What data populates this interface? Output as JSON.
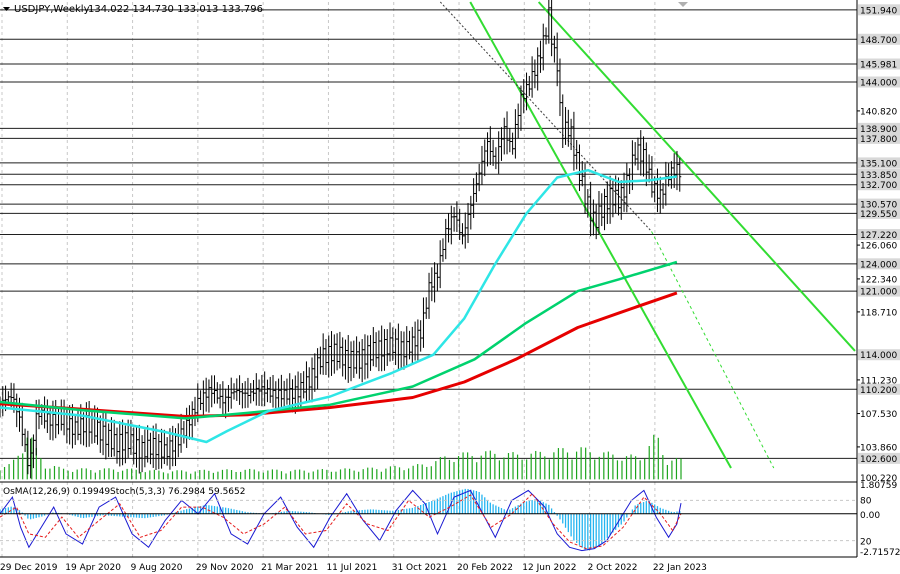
{
  "header": {
    "symbol": "USDJPY,Weekly",
    "ohlc": "134.022 134.730 133.013 133.796"
  },
  "indicator_header": {
    "osma": "OsMA(12,26,9) 0.19949",
    "stoch": "Stoch(5,3,3) 76.2984 59.5652"
  },
  "colors": {
    "background": "#ffffff",
    "grid": "#c8c8c8",
    "level": "#1f1f1f",
    "channel": "#32dc32",
    "ema_fast": "#2ee6e6",
    "ema_mid": "#00d26e",
    "ema_slow": "#e60000",
    "volume": "#1ea51e",
    "osma": "#24b4f0",
    "stoch_main": "#1a1ad2",
    "stoch_signal": "#e61e1e",
    "price_label_bg": "#d8d8d8"
  },
  "chart_data": {
    "type": "candlestick",
    "title": "USDJPY,Weekly",
    "ylim": [
      100.22,
      152.8
    ],
    "y_ticks": [
      "103.860",
      "107.530",
      "111.230",
      "114.000",
      "118.710",
      "122.340",
      "126.060",
      "129.550",
      "133.850",
      "140.820",
      "144.000",
      "148.700",
      "151.940"
    ],
    "x_ticks": [
      "29 Dec 2019",
      "19 Apr 2020",
      "9 Aug 2020",
      "29 Nov 2020",
      "21 Mar 2021",
      "11 Jul 2021",
      "31 Oct 2021",
      "20 Feb 2022",
      "12 Jun 2022",
      "2 Oct 2022",
      "22 Jan 2023"
    ],
    "levels": [
      "151.940",
      "148.700",
      "145.981",
      "144.000",
      "138.900",
      "137.800",
      "135.100",
      "133.850",
      "132.700",
      "130.570",
      "129.550",
      "127.220",
      "124.000",
      "121.000",
      "114.000",
      "110.200",
      "102.600"
    ],
    "bottom_label": "100.220",
    "price_path": [
      [
        0,
        108.8
      ],
      [
        6,
        109.5
      ],
      [
        10,
        106.5
      ],
      [
        14,
        101.5
      ],
      [
        18,
        107.8
      ],
      [
        24,
        106.8
      ],
      [
        30,
        107.0
      ],
      [
        36,
        105.8
      ],
      [
        42,
        106.5
      ],
      [
        48,
        105.6
      ],
      [
        56,
        104.2
      ],
      [
        62,
        104.6
      ],
      [
        68,
        103.4
      ],
      [
        74,
        104.0
      ],
      [
        80,
        103.3
      ],
      [
        86,
        104.6
      ],
      [
        90,
        106.0
      ],
      [
        96,
        108.8
      ],
      [
        102,
        110.2
      ],
      [
        108,
        108.9
      ],
      [
        114,
        110.1
      ],
      [
        120,
        109.6
      ],
      [
        126,
        110.3
      ],
      [
        132,
        109.7
      ],
      [
        138,
        109.6
      ],
      [
        144,
        109.9
      ],
      [
        150,
        111.2
      ],
      [
        156,
        113.8
      ],
      [
        162,
        114.3
      ],
      [
        168,
        113.5
      ],
      [
        174,
        113.4
      ],
      [
        180,
        114.4
      ],
      [
        186,
        114.8
      ],
      [
        190,
        115.1
      ],
      [
        196,
        114.5
      ],
      [
        200,
        115.3
      ],
      [
        204,
        116.5
      ],
      [
        208,
        121.5
      ],
      [
        212,
        123.0
      ],
      [
        216,
        127.5
      ],
      [
        220,
        129.5
      ],
      [
        224,
        126.8
      ],
      [
        228,
        130.4
      ],
      [
        232,
        133.8
      ],
      [
        236,
        137.5
      ],
      [
        240,
        135.0
      ],
      [
        244,
        139.0
      ],
      [
        248,
        136.5
      ],
      [
        252,
        142.0
      ],
      [
        256,
        143.5
      ],
      [
        260,
        145.8
      ],
      [
        264,
        149.0
      ],
      [
        266,
        151.5
      ],
      [
        268,
        147.5
      ],
      [
        270,
        146.0
      ],
      [
        272,
        138.5
      ],
      [
        276,
        139.0
      ],
      [
        280,
        134.8
      ],
      [
        284,
        131.0
      ],
      [
        288,
        128.5
      ],
      [
        292,
        130.2
      ],
      [
        296,
        131.5
      ],
      [
        300,
        131.0
      ],
      [
        304,
        133.0
      ],
      [
        308,
        136.5
      ],
      [
        312,
        135.8
      ],
      [
        316,
        132.5
      ],
      [
        320,
        131.5
      ],
      [
        324,
        133.8
      ],
      [
        328,
        134.5
      ],
      [
        330,
        133.8
      ]
    ],
    "ema_fast": [
      [
        0,
        108.2
      ],
      [
        40,
        107.3
      ],
      [
        80,
        105.5
      ],
      [
        100,
        104.4
      ],
      [
        110,
        105.6
      ],
      [
        130,
        107.8
      ],
      [
        160,
        109.4
      ],
      [
        190,
        112.0
      ],
      [
        210,
        114.0
      ],
      [
        225,
        118.0
      ],
      [
        240,
        124.0
      ],
      [
        255,
        129.5
      ],
      [
        270,
        133.5
      ],
      [
        285,
        134.3
      ],
      [
        300,
        133.0
      ],
      [
        315,
        133.2
      ],
      [
        328,
        133.6
      ]
    ],
    "ema_mid": [
      [
        0,
        108.8
      ],
      [
        40,
        107.9
      ],
      [
        90,
        107.0
      ],
      [
        120,
        107.6
      ],
      [
        160,
        108.5
      ],
      [
        200,
        110.5
      ],
      [
        230,
        113.5
      ],
      [
        255,
        117.5
      ],
      [
        280,
        121.0
      ],
      [
        300,
        122.3
      ],
      [
        328,
        124.2
      ]
    ],
    "ema_slow": [
      [
        0,
        108.6
      ],
      [
        40,
        108.0
      ],
      [
        90,
        107.2
      ],
      [
        120,
        107.4
      ],
      [
        160,
        108.2
      ],
      [
        200,
        109.3
      ],
      [
        225,
        111.0
      ],
      [
        250,
        113.5
      ],
      [
        280,
        117.0
      ],
      [
        300,
        118.6
      ],
      [
        328,
        120.8
      ]
    ],
    "channels": [
      {
        "from": [
          0.63,
          0.0
        ],
        "to": [
          1.0,
          0.73
        ]
      },
      {
        "from": [
          0.55,
          0.0
        ],
        "to": [
          0.855,
          0.975
        ]
      },
      {
        "from": [
          0.515,
          0.0
        ],
        "to": [
          0.762,
          0.48
        ],
        "style": "dark-dotted"
      },
      {
        "from": [
          0.762,
          0.48
        ],
        "to": [
          0.905,
          0.975
        ],
        "style": "dotted"
      }
    ],
    "volume": [
      [
        0,
        2
      ],
      [
        4,
        2
      ],
      [
        8,
        3
      ],
      [
        12,
        6
      ],
      [
        14,
        8
      ],
      [
        16,
        5
      ],
      [
        18,
        4
      ],
      [
        22,
        2
      ],
      [
        26,
        2
      ],
      [
        30,
        1.5
      ],
      [
        40,
        1.5
      ],
      [
        60,
        1.5
      ],
      [
        80,
        1.2
      ],
      [
        100,
        1.3
      ],
      [
        120,
        1.4
      ],
      [
        140,
        1.3
      ],
      [
        160,
        1.4
      ],
      [
        180,
        1.6
      ],
      [
        190,
        1.8
      ],
      [
        200,
        1.9
      ],
      [
        210,
        2.5
      ],
      [
        215,
        3.2
      ],
      [
        220,
        3.5
      ],
      [
        230,
        3.8
      ],
      [
        240,
        3.9
      ],
      [
        250,
        3.6
      ],
      [
        260,
        3.8
      ],
      [
        270,
        4.2
      ],
      [
        280,
        4.5
      ],
      [
        290,
        3.9
      ],
      [
        300,
        3.5
      ],
      [
        310,
        3.2
      ],
      [
        318,
        6.5
      ],
      [
        322,
        3.3
      ],
      [
        326,
        3.0
      ],
      [
        330,
        2.8
      ]
    ],
    "volume_scale_label": "102.600"
  },
  "indicator": {
    "ylim": [
      -2.71572,
      1.80759
    ],
    "levels": [
      "1.80759",
      "80",
      "0.00",
      "20",
      "-2.71572"
    ],
    "osma": [
      [
        0,
        0.3
      ],
      [
        6,
        0.5
      ],
      [
        10,
        0.2
      ],
      [
        14,
        -0.4
      ],
      [
        20,
        -0.2
      ],
      [
        26,
        0.1
      ],
      [
        32,
        0.0
      ],
      [
        40,
        -0.3
      ],
      [
        50,
        -0.1
      ],
      [
        60,
        -0.2
      ],
      [
        70,
        -0.3
      ],
      [
        80,
        -0.1
      ],
      [
        90,
        0.3
      ],
      [
        100,
        0.6
      ],
      [
        110,
        0.4
      ],
      [
        120,
        0.1
      ],
      [
        130,
        0.0
      ],
      [
        140,
        0.2
      ],
      [
        150,
        0.1
      ],
      [
        160,
        -0.1
      ],
      [
        170,
        0.2
      ],
      [
        180,
        0.3
      ],
      [
        190,
        0.2
      ],
      [
        200,
        0.4
      ],
      [
        210,
        0.9
      ],
      [
        218,
        1.4
      ],
      [
        226,
        1.7
      ],
      [
        232,
        1.5
      ],
      [
        238,
        0.7
      ],
      [
        246,
        0.2
      ],
      [
        254,
        0.8
      ],
      [
        260,
        1.0
      ],
      [
        266,
        0.6
      ],
      [
        272,
        -0.5
      ],
      [
        278,
        -1.8
      ],
      [
        284,
        -2.5
      ],
      [
        290,
        -2.2
      ],
      [
        296,
        -1.4
      ],
      [
        302,
        -0.6
      ],
      [
        308,
        0.6
      ],
      [
        314,
        0.9
      ],
      [
        320,
        0.4
      ],
      [
        326,
        0.1
      ],
      [
        330,
        0.2
      ]
    ],
    "stoch_main": [
      [
        0,
        60
      ],
      [
        6,
        85
      ],
      [
        10,
        40
      ],
      [
        14,
        10
      ],
      [
        20,
        40
      ],
      [
        26,
        70
      ],
      [
        32,
        30
      ],
      [
        40,
        15
      ],
      [
        48,
        70
      ],
      [
        56,
        85
      ],
      [
        64,
        30
      ],
      [
        72,
        10
      ],
      [
        80,
        50
      ],
      [
        88,
        80
      ],
      [
        96,
        60
      ],
      [
        104,
        90
      ],
      [
        112,
        30
      ],
      [
        120,
        15
      ],
      [
        128,
        60
      ],
      [
        136,
        85
      ],
      [
        144,
        40
      ],
      [
        152,
        10
      ],
      [
        160,
        55
      ],
      [
        168,
        90
      ],
      [
        176,
        50
      ],
      [
        184,
        20
      ],
      [
        192,
        65
      ],
      [
        200,
        95
      ],
      [
        206,
        75
      ],
      [
        212,
        30
      ],
      [
        220,
        85
      ],
      [
        228,
        95
      ],
      [
        234,
        60
      ],
      [
        240,
        25
      ],
      [
        248,
        80
      ],
      [
        256,
        95
      ],
      [
        264,
        70
      ],
      [
        270,
        30
      ],
      [
        276,
        10
      ],
      [
        282,
        5
      ],
      [
        288,
        8
      ],
      [
        294,
        20
      ],
      [
        300,
        50
      ],
      [
        306,
        80
      ],
      [
        312,
        95
      ],
      [
        318,
        55
      ],
      [
        324,
        25
      ],
      [
        328,
        45
      ],
      [
        330,
        76
      ]
    ],
    "stoch_signal": [
      [
        0,
        55
      ],
      [
        8,
        70
      ],
      [
        14,
        30
      ],
      [
        22,
        25
      ],
      [
        30,
        55
      ],
      [
        38,
        25
      ],
      [
        48,
        50
      ],
      [
        58,
        75
      ],
      [
        68,
        25
      ],
      [
        78,
        35
      ],
      [
        88,
        70
      ],
      [
        98,
        70
      ],
      [
        108,
        55
      ],
      [
        118,
        30
      ],
      [
        128,
        45
      ],
      [
        138,
        70
      ],
      [
        148,
        30
      ],
      [
        158,
        35
      ],
      [
        168,
        75
      ],
      [
        178,
        45
      ],
      [
        188,
        35
      ],
      [
        198,
        80
      ],
      [
        208,
        55
      ],
      [
        218,
        70
      ],
      [
        228,
        88
      ],
      [
        238,
        40
      ],
      [
        248,
        60
      ],
      [
        258,
        90
      ],
      [
        268,
        45
      ],
      [
        276,
        18
      ],
      [
        284,
        8
      ],
      [
        292,
        12
      ],
      [
        302,
        40
      ],
      [
        312,
        85
      ],
      [
        320,
        60
      ],
      [
        326,
        35
      ],
      [
        330,
        60
      ]
    ]
  }
}
